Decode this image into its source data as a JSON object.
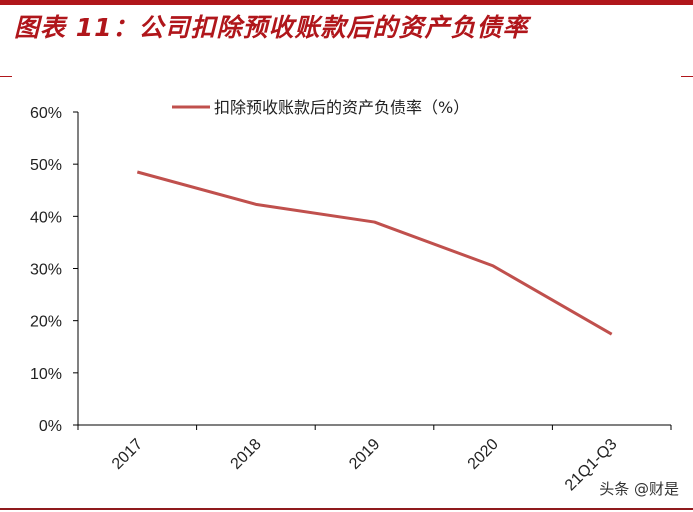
{
  "header": {
    "title": "图表 11：公司扣除预收账款后的资产负债率"
  },
  "legend": {
    "label": "扣除预收账款后的资产负债率（%）",
    "color": "#c0504d"
  },
  "watermark": "头条 @财是",
  "colors": {
    "accent": "#b0161b",
    "line": "#c0504d",
    "axis": "#000000"
  },
  "chart_data": {
    "type": "line",
    "title": "扣除预收账款后的资产负债率",
    "categories": [
      "2017",
      "2018",
      "2019",
      "2020",
      "21Q1-Q3"
    ],
    "series": [
      {
        "name": "扣除预收账款后的资产负债率（%）",
        "values": [
          48.5,
          42.3,
          38.9,
          30.5,
          17.4
        ]
      }
    ],
    "xlabel": "",
    "ylabel": "",
    "ylim": [
      0,
      60
    ],
    "yticks": [
      "0%",
      "10%",
      "20%",
      "30%",
      "40%",
      "50%",
      "60%"
    ],
    "grid": false,
    "legend_position": "top"
  }
}
